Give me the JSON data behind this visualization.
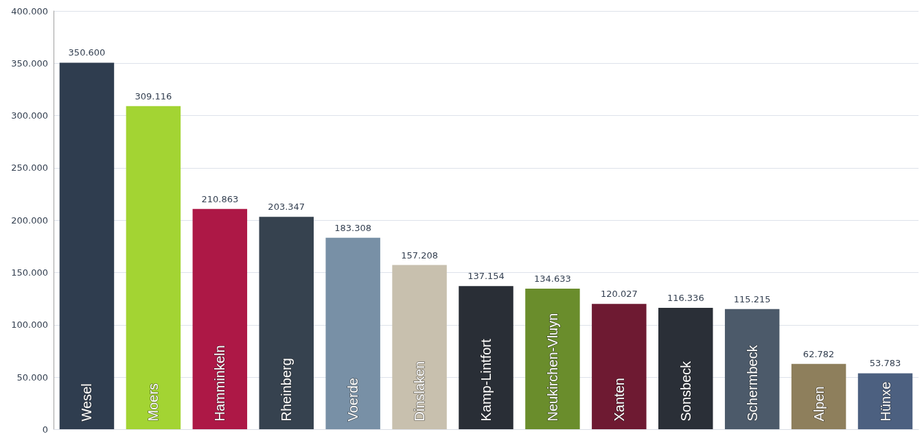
{
  "chart_data": {
    "type": "bar",
    "categories": [
      "Wesel",
      "Moers",
      "Hamminkeln",
      "Rheinberg",
      "Voerde",
      "Dinslaken",
      "Kamp-Lintfort",
      "Neukirchen-Vluyn",
      "Xanten",
      "Sonsbeck",
      "Schermbeck",
      "Alpen",
      "Hünxe"
    ],
    "values": [
      350600,
      309116,
      210863,
      203347,
      183308,
      157208,
      137154,
      134633,
      120027,
      116336,
      115215,
      62782,
      53783
    ],
    "value_labels": [
      "350.600",
      "309.116",
      "210.863",
      "203.347",
      "183.308",
      "157.208",
      "137.154",
      "134.633",
      "120.027",
      "116.336",
      "115.215",
      "62.782",
      "53.783"
    ],
    "colors": [
      "#2f3d4f",
      "#a3d433",
      "#ad1846",
      "#36424f",
      "#7890a6",
      "#c8c0ae",
      "#292e36",
      "#6a8d2c",
      "#6e1a32",
      "#2a2f37",
      "#4c5a6a",
      "#8e7f5c",
      "#4c6080"
    ],
    "ylim": [
      0,
      400000
    ],
    "yticks": [
      {
        "value": 0,
        "label": "0"
      },
      {
        "value": 50000,
        "label": "50.000"
      },
      {
        "value": 100000,
        "label": "100.000"
      },
      {
        "value": 150000,
        "label": "150.000"
      },
      {
        "value": 200000,
        "label": "200.000"
      },
      {
        "value": 250000,
        "label": "250.000"
      },
      {
        "value": 300000,
        "label": "300.000"
      },
      {
        "value": 350000,
        "label": "350.000"
      },
      {
        "value": 400000,
        "label": "400.000"
      }
    ],
    "grid": "y"
  }
}
